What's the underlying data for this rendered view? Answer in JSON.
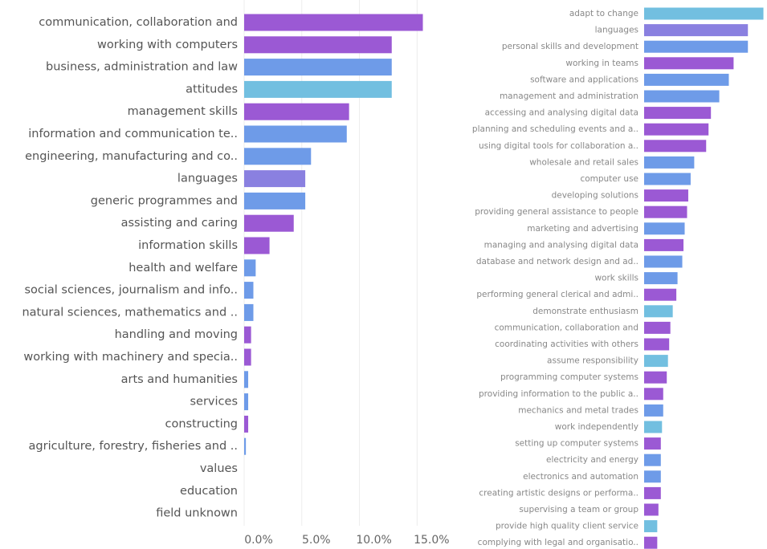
{
  "chart_data": [
    {
      "type": "barh",
      "categories": [
        "communication, collaboration and",
        "working with computers",
        "business, administration and law",
        "attitudes",
        "management skills",
        "information and communication te..",
        "engineering, manufacturing and co..",
        "languages",
        "generic programmes and",
        "assisting and caring",
        "information skills",
        "health and welfare",
        "social sciences, journalism and info..",
        "natural sciences, mathematics and ..",
        "handling and moving",
        "working with machinery and specia..",
        "arts and humanities",
        "services",
        "constructing",
        "agriculture, forestry, fisheries and ..",
        "values",
        "education",
        "field unknown"
      ],
      "values": [
        15.5,
        12.8,
        12.8,
        12.8,
        9.1,
        8.9,
        5.8,
        5.3,
        5.3,
        4.3,
        2.2,
        1.0,
        0.8,
        0.8,
        0.6,
        0.6,
        0.35,
        0.35,
        0.35,
        0.15,
        0,
        0,
        0
      ],
      "colors": [
        "#9b59d4",
        "#9b59d4",
        "#6e9be8",
        "#72bfe0",
        "#9b59d4",
        "#6e9be8",
        "#6e9be8",
        "#8a80e0",
        "#6e9be8",
        "#9b59d4",
        "#9b59d4",
        "#6e9be8",
        "#6e9be8",
        "#6e9be8",
        "#9b59d4",
        "#9b59d4",
        "#6e9be8",
        "#6e9be8",
        "#9b59d4",
        "#6e9be8",
        "#6e9be8",
        "#6e9be8",
        "#6e9be8"
      ],
      "xlim": [
        0,
        16.3
      ],
      "xticks": [
        {
          "value": 0,
          "label": "0.0%"
        },
        {
          "value": 5,
          "label": "5.0%"
        },
        {
          "value": 10,
          "label": "10.0%"
        },
        {
          "value": 15,
          "label": "15.0%"
        }
      ],
      "grid": true
    },
    {
      "type": "barh",
      "categories": [
        "adapt to change",
        "languages",
        "personal skills and development",
        "working in teams",
        "software and applications",
        "management and administration",
        "accessing and analysing digital data",
        "planning and scheduling events and a..",
        "using digital tools for collaboration a..",
        "wholesale and retail sales",
        "computer use",
        "developing solutions",
        "providing general assistance to people",
        "marketing and advertising",
        "managing and analysing digital data",
        "database and network design and ad..",
        "work skills",
        "performing general clerical and admi..",
        "demonstrate enthusiasm",
        "communication, collaboration and",
        "coordinating activities with others",
        "assume responsibility",
        "programming computer systems",
        "providing information to the public a..",
        "mechanics and metal trades",
        "work independently",
        "setting up computer systems",
        "electricity and energy",
        "electronics and automation",
        "creating artistic designs or performa..",
        "supervising a team or group",
        "provide high quality client service",
        "complying with legal and organisatio.."
      ],
      "values": [
        10.0,
        8.7,
        8.7,
        7.5,
        7.1,
        6.3,
        5.6,
        5.4,
        5.2,
        4.2,
        3.9,
        3.7,
        3.6,
        3.4,
        3.3,
        3.2,
        2.8,
        2.7,
        2.4,
        2.2,
        2.1,
        2.0,
        1.9,
        1.6,
        1.6,
        1.5,
        1.4,
        1.4,
        1.4,
        1.4,
        1.2,
        1.1,
        1.1
      ],
      "colors": [
        "#72bfe0",
        "#8a80e0",
        "#6e9be8",
        "#9b59d4",
        "#6e9be8",
        "#6e9be8",
        "#9b59d4",
        "#9b59d4",
        "#9b59d4",
        "#6e9be8",
        "#6e9be8",
        "#9b59d4",
        "#9b59d4",
        "#6e9be8",
        "#9b59d4",
        "#6e9be8",
        "#6e9be8",
        "#9b59d4",
        "#72bfe0",
        "#9b59d4",
        "#9b59d4",
        "#72bfe0",
        "#9b59d4",
        "#9b59d4",
        "#6e9be8",
        "#72bfe0",
        "#9b59d4",
        "#6e9be8",
        "#6e9be8",
        "#9b59d4",
        "#9b59d4",
        "#72bfe0",
        "#9b59d4"
      ],
      "xlim": [
        0,
        10.3
      ]
    }
  ]
}
